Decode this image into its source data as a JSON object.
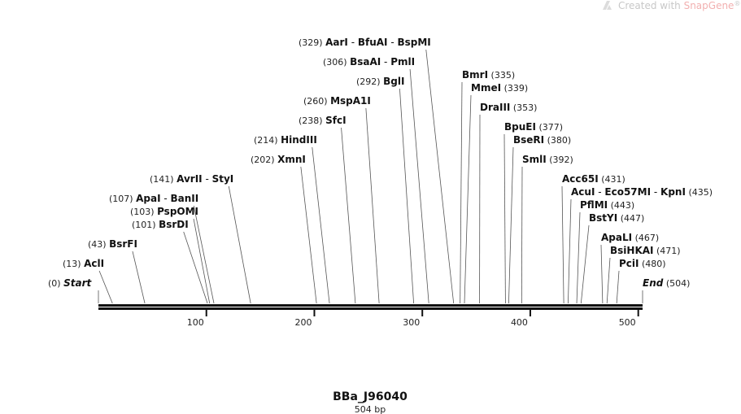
{
  "watermark": {
    "prefix": "Created with ",
    "brand": "SnapGene",
    "mark": "®",
    "logo_icon": "snapgene-logo-icon"
  },
  "sequence": {
    "name": "BBa_J96040",
    "length_label": "504 bp",
    "length": 504,
    "axis_ticks": [
      100,
      200,
      300,
      400,
      500
    ]
  },
  "sites": [
    {
      "pos": "(0)",
      "enzymes": [
        "Start"
      ],
      "site": 0,
      "italic": true
    },
    {
      "pos": "(13)",
      "enzymes": [
        "AclI"
      ],
      "site": 13
    },
    {
      "pos": "(43)",
      "enzymes": [
        "BsrFI"
      ],
      "site": 43
    },
    {
      "pos": "(101)",
      "enzymes": [
        "BsrDI"
      ],
      "site": 101
    },
    {
      "pos": "(103)",
      "enzymes": [
        "PspOMI"
      ],
      "site": 103
    },
    {
      "pos": "(107)",
      "enzymes": [
        "ApaI",
        "BanII"
      ],
      "site": 107
    },
    {
      "pos": "(141)",
      "enzymes": [
        "AvrII",
        "StyI"
      ],
      "site": 141
    },
    {
      "pos": "(202)",
      "enzymes": [
        "XmnI"
      ],
      "site": 202
    },
    {
      "pos": "(214)",
      "enzymes": [
        "HindIII"
      ],
      "site": 214
    },
    {
      "pos": "(238)",
      "enzymes": [
        "SfcI"
      ],
      "site": 238
    },
    {
      "pos": "(260)",
      "enzymes": [
        "MspA1I"
      ],
      "site": 260
    },
    {
      "pos": "(292)",
      "enzymes": [
        "BglI"
      ],
      "site": 292
    },
    {
      "pos": "(306)",
      "enzymes": [
        "BsaAI",
        "PmlI"
      ],
      "site": 306
    },
    {
      "pos": "(329)",
      "enzymes": [
        "AarI",
        "BfuAI",
        "BspMI"
      ],
      "site": 329
    },
    {
      "pos": "(335)",
      "enzymes": [
        "BmrI"
      ],
      "site": 335
    },
    {
      "pos": "(339)",
      "enzymes": [
        "MmeI"
      ],
      "site": 339
    },
    {
      "pos": "(353)",
      "enzymes": [
        "DraIII"
      ],
      "site": 353
    },
    {
      "pos": "(377)",
      "enzymes": [
        "BpuEI"
      ],
      "site": 377
    },
    {
      "pos": "(380)",
      "enzymes": [
        "BseRI"
      ],
      "site": 380
    },
    {
      "pos": "(392)",
      "enzymes": [
        "SmlI"
      ],
      "site": 392
    },
    {
      "pos": "(431)",
      "enzymes": [
        "Acc65I"
      ],
      "site": 431
    },
    {
      "pos": "(435)",
      "enzymes": [
        "AcuI",
        "Eco57MI",
        "KpnI"
      ],
      "site": 435
    },
    {
      "pos": "(443)",
      "enzymes": [
        "PflMI"
      ],
      "site": 443
    },
    {
      "pos": "(447)",
      "enzymes": [
        "BstYI"
      ],
      "site": 447
    },
    {
      "pos": "(467)",
      "enzymes": [
        "ApaLI"
      ],
      "site": 467
    },
    {
      "pos": "(471)",
      "enzymes": [
        "BsiHKAI"
      ],
      "site": 471
    },
    {
      "pos": "(480)",
      "enzymes": [
        "PciI"
      ],
      "site": 480
    },
    {
      "pos": "(504)",
      "enzymes": [
        "End"
      ],
      "site": 504,
      "italic": true
    }
  ]
}
